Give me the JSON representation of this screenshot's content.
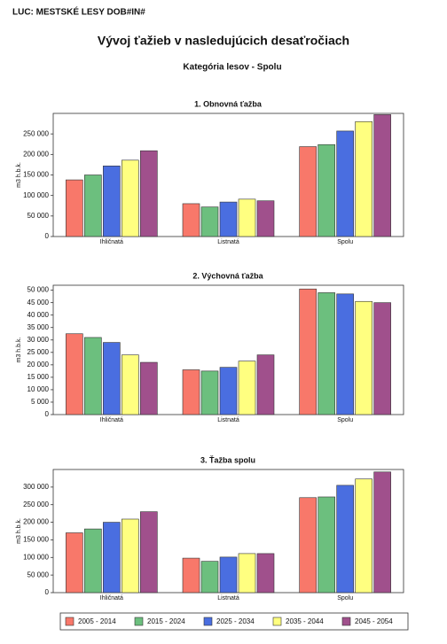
{
  "header": {
    "luc": "LUC:  MESTSKÉ LESY DOB#IN#",
    "title": "Vývoj ťažieb v nasledujúcich desaťročiach",
    "subtitle": "Kategória lesov -  Spolu"
  },
  "chart_data": [
    {
      "type": "bar",
      "title": "1. Obnovná ťažba",
      "y_label": "m3 h.b.k.",
      "categories": [
        "Ihličnatá",
        "Listnatá",
        "Spolu"
      ],
      "series": [
        {
          "name": "2005 - 2014",
          "color": "#f8786a",
          "values": [
            138000,
            80000,
            219000
          ]
        },
        {
          "name": "2015 - 2024",
          "color": "#6cbf7e",
          "values": [
            150000,
            72000,
            224000
          ]
        },
        {
          "name": "2025 - 2034",
          "color": "#4a6ee0",
          "values": [
            172000,
            84000,
            257000
          ]
        },
        {
          "name": "2035 - 2044",
          "color": "#ffff80",
          "values": [
            186000,
            91000,
            280000
          ]
        },
        {
          "name": "2045 - 2054",
          "color": "#a0508c",
          "values": [
            209000,
            87000,
            297000
          ]
        }
      ],
      "ylim": [
        0,
        300000
      ],
      "yticks": [
        0,
        {
          "value": 50000,
          "label": "50 000"
        },
        {
          "value": 100000,
          "label": "100 000"
        },
        {
          "value": 150000,
          "label": "150 000"
        },
        {
          "value": 200000,
          "label": "200 000"
        },
        {
          "value": 250000,
          "label": "250 000"
        }
      ]
    },
    {
      "type": "bar",
      "title": "2. Výchovná ťažba",
      "y_label": "m3 h.b.k.",
      "categories": [
        "Ihličnatá",
        "Listnatá",
        "Spolu"
      ],
      "series": [
        {
          "name": "2005 - 2014",
          "color": "#f8786a",
          "values": [
            32500,
            18000,
            50500
          ]
        },
        {
          "name": "2015 - 2024",
          "color": "#6cbf7e",
          "values": [
            31000,
            17500,
            49000
          ]
        },
        {
          "name": "2025 - 2034",
          "color": "#4a6ee0",
          "values": [
            29000,
            19000,
            48500
          ]
        },
        {
          "name": "2035 - 2044",
          "color": "#ffff80",
          "values": [
            24000,
            21500,
            45500
          ]
        },
        {
          "name": "2045 - 2054",
          "color": "#a0508c",
          "values": [
            21000,
            24000,
            45000
          ]
        }
      ],
      "ylim": [
        0,
        52000
      ],
      "yticks": [
        0,
        {
          "value": 5000,
          "label": "5 000"
        },
        {
          "value": 10000,
          "label": "10 000"
        },
        {
          "value": 15000,
          "label": "15 000"
        },
        {
          "value": 20000,
          "label": "20 000"
        },
        {
          "value": 25000,
          "label": "25 000"
        },
        {
          "value": 30000,
          "label": "30 000"
        },
        {
          "value": 35000,
          "label": "35 000"
        },
        {
          "value": 40000,
          "label": "40 000"
        },
        {
          "value": 45000,
          "label": "45 000"
        },
        {
          "value": 50000,
          "label": "50 000"
        }
      ]
    },
    {
      "type": "bar",
      "title": "3. Ťažba spolu",
      "y_label": "m3 h.b.k.",
      "categories": [
        "Ihličnatá",
        "Listnatá",
        "Spolu"
      ],
      "series": [
        {
          "name": "2005 - 2014",
          "color": "#f8786a",
          "values": [
            170000,
            98000,
            270000
          ]
        },
        {
          "name": "2015 - 2024",
          "color": "#6cbf7e",
          "values": [
            181000,
            89000,
            272000
          ]
        },
        {
          "name": "2025 - 2034",
          "color": "#4a6ee0",
          "values": [
            200000,
            101000,
            305000
          ]
        },
        {
          "name": "2035 - 2044",
          "color": "#ffff80",
          "values": [
            209000,
            111000,
            323000
          ]
        },
        {
          "name": "2045 - 2054",
          "color": "#a0508c",
          "values": [
            230000,
            111000,
            343000
          ]
        }
      ],
      "ylim": [
        0,
        350000
      ],
      "yticks": [
        0,
        {
          "value": 50000,
          "label": "50 000"
        },
        {
          "value": 100000,
          "label": "100 000"
        },
        {
          "value": 150000,
          "label": "150 000"
        },
        {
          "value": 200000,
          "label": "200 000"
        },
        {
          "value": 250000,
          "label": "250 000"
        },
        {
          "value": 300000,
          "label": "300 000"
        }
      ]
    }
  ]
}
